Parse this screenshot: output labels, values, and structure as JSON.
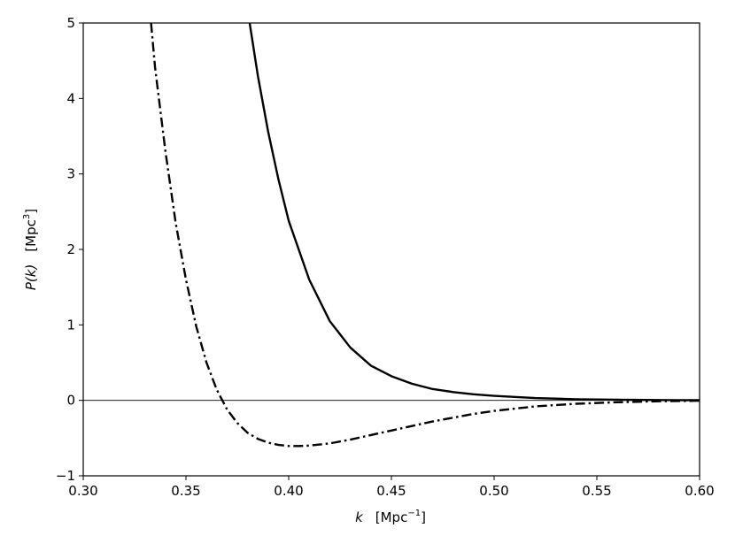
{
  "chart_data": {
    "type": "line",
    "xlabel": {
      "var": "k",
      "unit_prefix": "[Mpc",
      "unit_exp": "−1",
      "unit_suffix": "]"
    },
    "ylabel": {
      "var": "P(k)",
      "unit_prefix": "[Mpc",
      "unit_exp": "3",
      "unit_suffix": "]"
    },
    "xlim": [
      0.3,
      0.6
    ],
    "ylim": [
      -1,
      5
    ],
    "x_ticks": [
      0.3,
      0.35,
      0.4,
      0.45,
      0.5,
      0.55,
      0.6
    ],
    "x_tick_labels": [
      "0.30",
      "0.35",
      "0.40",
      "0.45",
      "0.50",
      "0.55",
      "0.60"
    ],
    "y_ticks": [
      -1,
      0,
      1,
      2,
      3,
      4,
      5
    ],
    "y_tick_labels": [
      "−1",
      "0",
      "1",
      "2",
      "3",
      "4",
      "5"
    ],
    "grid": false,
    "reference_lines": [
      {
        "y": 0,
        "style": "solid"
      }
    ],
    "series": [
      {
        "style": "solid",
        "color": "#000000",
        "points": [
          [
            0.381,
            5.0
          ],
          [
            0.385,
            4.3
          ],
          [
            0.39,
            3.56
          ],
          [
            0.395,
            2.93
          ],
          [
            0.4,
            2.38
          ],
          [
            0.41,
            1.6
          ],
          [
            0.42,
            1.05
          ],
          [
            0.43,
            0.7
          ],
          [
            0.44,
            0.46
          ],
          [
            0.45,
            0.32
          ],
          [
            0.46,
            0.22
          ],
          [
            0.47,
            0.15
          ],
          [
            0.48,
            0.11
          ],
          [
            0.49,
            0.08
          ],
          [
            0.5,
            0.06
          ],
          [
            0.52,
            0.03
          ],
          [
            0.54,
            0.015
          ],
          [
            0.56,
            0.008
          ],
          [
            0.58,
            0.004
          ],
          [
            0.6,
            0.002
          ]
        ]
      },
      {
        "style": "dashdot",
        "color": "#000000",
        "points": [
          [
            0.333,
            5.0
          ],
          [
            0.335,
            4.4
          ],
          [
            0.34,
            3.3
          ],
          [
            0.345,
            2.35
          ],
          [
            0.35,
            1.6
          ],
          [
            0.355,
            0.98
          ],
          [
            0.36,
            0.5
          ],
          [
            0.365,
            0.14
          ],
          [
            0.37,
            -0.12
          ],
          [
            0.375,
            -0.3
          ],
          [
            0.38,
            -0.43
          ],
          [
            0.385,
            -0.51
          ],
          [
            0.39,
            -0.56
          ],
          [
            0.395,
            -0.59
          ],
          [
            0.4,
            -0.605
          ],
          [
            0.405,
            -0.605
          ],
          [
            0.41,
            -0.6
          ],
          [
            0.42,
            -0.57
          ],
          [
            0.43,
            -0.52
          ],
          [
            0.44,
            -0.46
          ],
          [
            0.45,
            -0.4
          ],
          [
            0.46,
            -0.34
          ],
          [
            0.47,
            -0.28
          ],
          [
            0.48,
            -0.23
          ],
          [
            0.49,
            -0.18
          ],
          [
            0.5,
            -0.14
          ],
          [
            0.52,
            -0.08
          ],
          [
            0.54,
            -0.045
          ],
          [
            0.56,
            -0.025
          ],
          [
            0.58,
            -0.012
          ],
          [
            0.6,
            -0.005
          ]
        ]
      }
    ]
  }
}
